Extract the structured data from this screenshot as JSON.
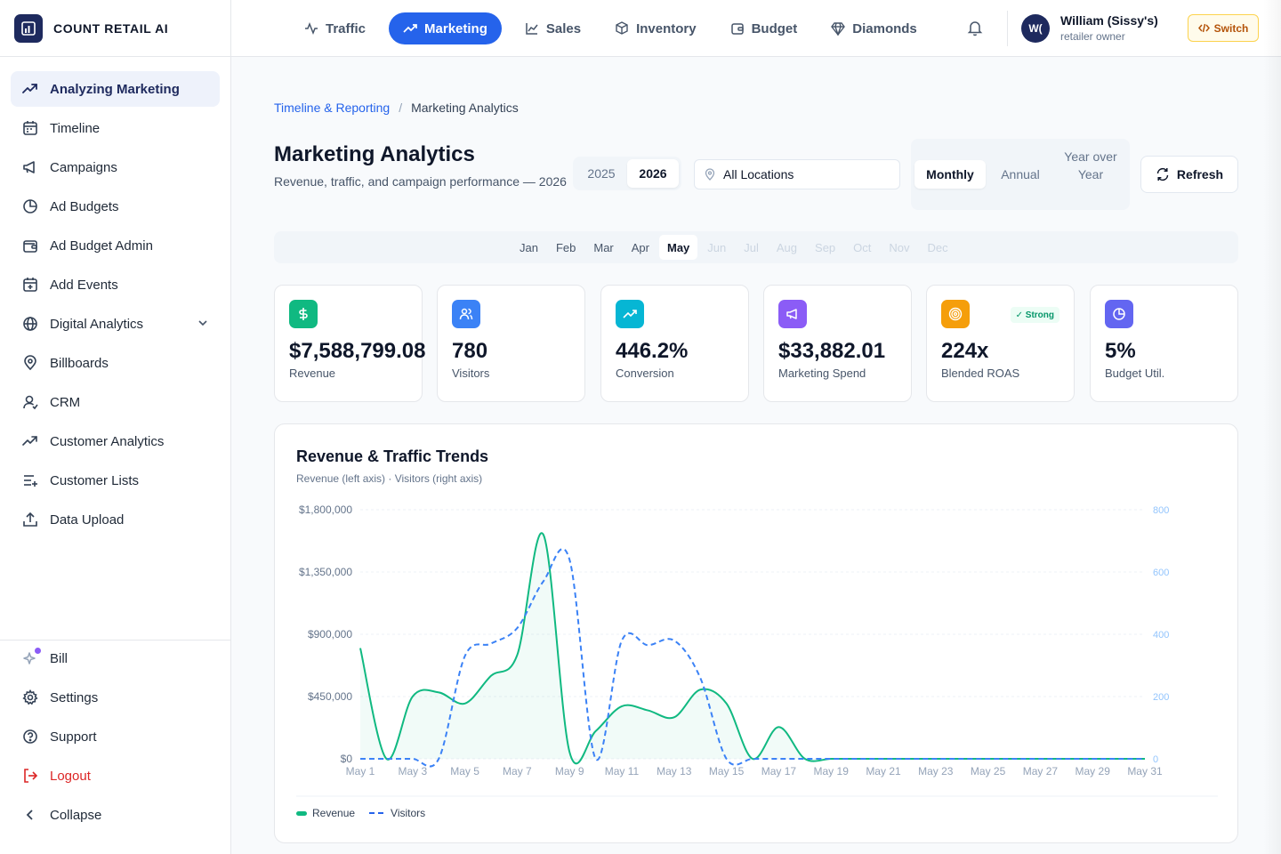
{
  "brand": {
    "name": "COUNT RETAIL AI"
  },
  "sidebar": {
    "items": [
      {
        "label": "Analyzing Marketing",
        "icon": "trending-up-icon",
        "active": true
      },
      {
        "label": "Timeline",
        "icon": "calendar-icon"
      },
      {
        "label": "Campaigns",
        "icon": "megaphone-icon"
      },
      {
        "label": "Ad Budgets",
        "icon": "pie-chart-icon"
      },
      {
        "label": "Ad Budget Admin",
        "icon": "wallet-icon"
      },
      {
        "label": "Add Events",
        "icon": "calendar-plus-icon"
      },
      {
        "label": "Digital Analytics",
        "icon": "globe-icon",
        "expandable": true
      },
      {
        "label": "Billboards",
        "icon": "map-pin-icon"
      },
      {
        "label": "CRM",
        "icon": "user-icon"
      },
      {
        "label": "Customer Analytics",
        "icon": "trending-up-icon"
      },
      {
        "label": "Customer Lists",
        "icon": "list-plus-icon"
      },
      {
        "label": "Data Upload",
        "icon": "upload-icon"
      }
    ],
    "bottom": [
      {
        "label": "Bill",
        "icon": "sparkles-icon"
      },
      {
        "label": "Settings",
        "icon": "gear-icon"
      },
      {
        "label": "Support",
        "icon": "help-circle-icon"
      },
      {
        "label": "Logout",
        "icon": "logout-icon"
      },
      {
        "label": "Collapse",
        "icon": "chevron-left-icon"
      }
    ]
  },
  "topbar": {
    "tabs": [
      {
        "label": "Traffic",
        "icon": "activity-icon"
      },
      {
        "label": "Marketing",
        "icon": "trending-up-icon",
        "active": true
      },
      {
        "label": "Sales",
        "icon": "line-chart-icon"
      },
      {
        "label": "Inventory",
        "icon": "boxes-icon"
      },
      {
        "label": "Budget",
        "icon": "wallet-icon"
      },
      {
        "label": "Diamonds",
        "icon": "gem-icon"
      }
    ],
    "user": {
      "initials": "W(",
      "name": "William (Sissy's)",
      "role": "retailer owner"
    },
    "switch_label": "Switch"
  },
  "breadcrumb": {
    "parent": "Timeline & Reporting",
    "separator": "/",
    "current": "Marketing Analytics"
  },
  "page": {
    "title": "Marketing Analytics",
    "subtitle": "Revenue, traffic, and campaign performance — 2026"
  },
  "filters": {
    "years": [
      "2025",
      "2026"
    ],
    "selected_year": "2026",
    "location": "All Locations",
    "periods": [
      "Monthly",
      "Annual",
      "Year over Year"
    ],
    "selected_period": "Monthly",
    "refresh_label": "Refresh",
    "months": [
      "Jan",
      "Feb",
      "Mar",
      "Apr",
      "May",
      "Jun",
      "Jul",
      "Aug",
      "Sep",
      "Oct",
      "Nov",
      "Dec"
    ],
    "selected_month": "May"
  },
  "kpis": [
    {
      "value": "$7,588,799.08",
      "label": "Revenue",
      "icon": "dollar-icon",
      "color": "#10b981"
    },
    {
      "value": "780",
      "label": "Visitors",
      "icon": "users-icon",
      "color": "#3b82f6"
    },
    {
      "value": "446.2%",
      "label": "Conversion",
      "icon": "trending-up-icon",
      "color": "#06b6d4"
    },
    {
      "value": "$33,882.01",
      "label": "Marketing Spend",
      "icon": "megaphone-icon",
      "color": "#8b5cf6"
    },
    {
      "value": "224x",
      "label": "Blended ROAS",
      "icon": "target-icon",
      "color": "#f59e0b",
      "badge": "✓ Strong"
    },
    {
      "value": "5%",
      "label": "Budget Util.",
      "icon": "pie-chart-icon",
      "color": "#6366f1"
    }
  ],
  "chart": {
    "title": "Revenue & Traffic Trends",
    "subtitle": "Revenue (left axis) · Visitors (right axis)"
  },
  "chart_data": {
    "type": "line",
    "x": [
      "May 1",
      "May 2",
      "May 3",
      "May 4",
      "May 5",
      "May 6",
      "May 7",
      "May 8",
      "May 9",
      "May 10",
      "May 11",
      "May 12",
      "May 13",
      "May 14",
      "May 15",
      "May 16",
      "May 17",
      "May 18",
      "May 19",
      "May 20",
      "May 21",
      "May 22",
      "May 23",
      "May 24",
      "May 25",
      "May 26",
      "May 27",
      "May 28",
      "May 29",
      "May 30",
      "May 31"
    ],
    "x_tick_labels": [
      "May 1",
      "May 3",
      "May 5",
      "May 7",
      "May 9",
      "May 11",
      "May 13",
      "May 15",
      "May 17",
      "May 19",
      "May 21",
      "May 23",
      "May 25",
      "May 27",
      "May 29",
      "May 31"
    ],
    "series": [
      {
        "name": "Revenue",
        "axis": "left",
        "color": "#10b981",
        "style": "solid",
        "fill": true,
        "values": [
          800000,
          0,
          450000,
          480000,
          400000,
          600000,
          750000,
          1620000,
          50000,
          200000,
          380000,
          350000,
          300000,
          500000,
          400000,
          0,
          230000,
          0,
          0,
          0,
          0,
          0,
          0,
          0,
          0,
          0,
          0,
          0,
          0,
          0,
          0
        ]
      },
      {
        "name": "Visitors",
        "axis": "right",
        "color": "#3b82f6",
        "style": "dashed",
        "values": [
          0,
          0,
          0,
          0,
          330,
          370,
          420,
          570,
          640,
          0,
          380,
          365,
          380,
          260,
          0,
          0,
          0,
          0,
          0,
          0,
          0,
          0,
          0,
          0,
          0,
          0,
          0,
          0,
          0,
          0,
          0
        ]
      }
    ],
    "y_left": {
      "ticks": [
        "$0",
        "$450,000",
        "$900,000",
        "$1,350,000",
        "$1,800,000"
      ],
      "range": [
        0,
        1800000
      ]
    },
    "y_right": {
      "ticks": [
        "0",
        "200",
        "400",
        "600",
        "800"
      ],
      "range": [
        0,
        800
      ]
    },
    "grid": true,
    "legend_position": "bottom-left"
  }
}
